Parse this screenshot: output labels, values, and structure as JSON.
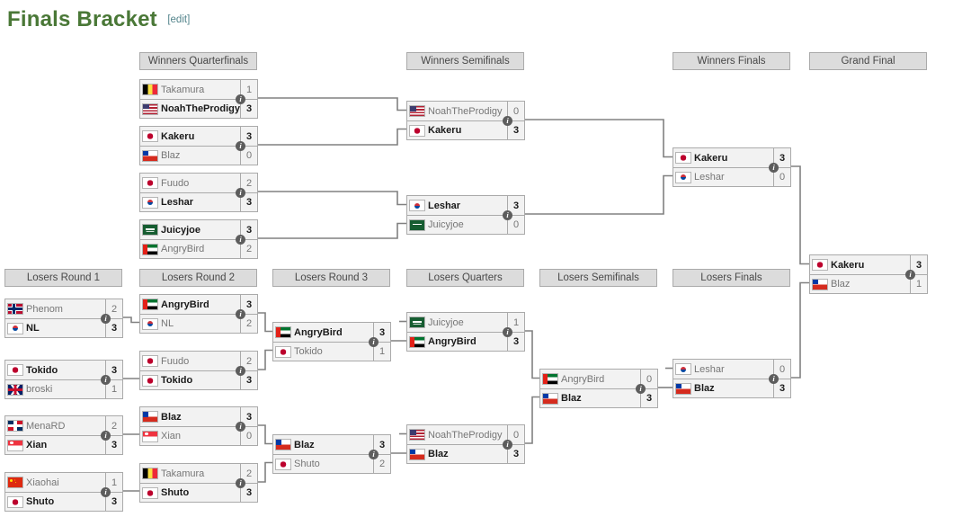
{
  "page": {
    "title": "Finals Bracket",
    "edit_label": "[edit]"
  },
  "icons": {
    "info": "i"
  },
  "colors": {
    "title_green": "#4a7837",
    "edit_link": "#54858c",
    "header_bg": "#dcdcdc",
    "box_border": "#aaaaaa",
    "row_bg": "#f2f2f2",
    "winner_text": "#1a1a1a",
    "loser_text": "#767676",
    "connector": "#808080"
  },
  "headers": [
    {
      "id": "winners-quarterfinals",
      "label": "Winners Quarterfinals"
    },
    {
      "id": "winners-semifinals",
      "label": "Winners Semifinals"
    },
    {
      "id": "winners-finals",
      "label": "Winners Finals"
    },
    {
      "id": "grand-final",
      "label": "Grand Final"
    },
    {
      "id": "losers-round-1",
      "label": "Losers Round 1"
    },
    {
      "id": "losers-round-2",
      "label": "Losers Round 2"
    },
    {
      "id": "losers-round-3",
      "label": "Losers Round 3"
    },
    {
      "id": "losers-quarters",
      "label": "Losers Quarters"
    },
    {
      "id": "losers-semifinals",
      "label": "Losers Semifinals"
    },
    {
      "id": "losers-finals",
      "label": "Losers Finals"
    }
  ],
  "matches": [
    {
      "id": "wqf1",
      "round": "Winners Quarterfinals",
      "players": [
        {
          "name": "Takamura",
          "flag": "be",
          "country": "Belgium",
          "score": "1",
          "winner": false
        },
        {
          "name": "NoahTheProdigy",
          "flag": "us",
          "country": "United States",
          "score": "3",
          "winner": true
        }
      ]
    },
    {
      "id": "wqf2",
      "round": "Winners Quarterfinals",
      "players": [
        {
          "name": "Kakeru",
          "flag": "jp",
          "country": "Japan",
          "score": "3",
          "winner": true
        },
        {
          "name": "Blaz",
          "flag": "cl",
          "country": "Chile",
          "score": "0",
          "winner": false
        }
      ]
    },
    {
      "id": "wqf3",
      "round": "Winners Quarterfinals",
      "players": [
        {
          "name": "Fuudo",
          "flag": "jp",
          "country": "Japan",
          "score": "2",
          "winner": false
        },
        {
          "name": "Leshar",
          "flag": "kr",
          "country": "South Korea",
          "score": "3",
          "winner": true
        }
      ]
    },
    {
      "id": "wqf4",
      "round": "Winners Quarterfinals",
      "players": [
        {
          "name": "Juicyjoe",
          "flag": "sa",
          "country": "Saudi Arabia",
          "score": "3",
          "winner": true
        },
        {
          "name": "AngryBird",
          "flag": "ae",
          "country": "United Arab Emirates",
          "score": "2",
          "winner": false
        }
      ]
    },
    {
      "id": "wsf1",
      "round": "Winners Semifinals",
      "players": [
        {
          "name": "NoahTheProdigy",
          "flag": "us",
          "country": "United States",
          "score": "0",
          "winner": false
        },
        {
          "name": "Kakeru",
          "flag": "jp",
          "country": "Japan",
          "score": "3",
          "winner": true
        }
      ]
    },
    {
      "id": "wsf2",
      "round": "Winners Semifinals",
      "players": [
        {
          "name": "Leshar",
          "flag": "kr",
          "country": "South Korea",
          "score": "3",
          "winner": true
        },
        {
          "name": "Juicyjoe",
          "flag": "sa",
          "country": "Saudi Arabia",
          "score": "0",
          "winner": false
        }
      ]
    },
    {
      "id": "wf",
      "round": "Winners Finals",
      "players": [
        {
          "name": "Kakeru",
          "flag": "jp",
          "country": "Japan",
          "score": "3",
          "winner": true
        },
        {
          "name": "Leshar",
          "flag": "kr",
          "country": "South Korea",
          "score": "0",
          "winner": false
        }
      ]
    },
    {
      "id": "gf",
      "round": "Grand Final",
      "players": [
        {
          "name": "Kakeru",
          "flag": "jp",
          "country": "Japan",
          "score": "3",
          "winner": true
        },
        {
          "name": "Blaz",
          "flag": "cl",
          "country": "Chile",
          "score": "1",
          "winner": false
        }
      ]
    },
    {
      "id": "lr1m1",
      "round": "Losers Round 1",
      "players": [
        {
          "name": "Phenom",
          "flag": "no",
          "country": "Norway",
          "score": "2",
          "winner": false
        },
        {
          "name": "NL",
          "flag": "kr",
          "country": "South Korea",
          "score": "3",
          "winner": true
        }
      ]
    },
    {
      "id": "lr1m2",
      "round": "Losers Round 1",
      "players": [
        {
          "name": "Tokido",
          "flag": "jp",
          "country": "Japan",
          "score": "3",
          "winner": true
        },
        {
          "name": "broski",
          "flag": "gb",
          "country": "United Kingdom",
          "score": "1",
          "winner": false
        }
      ]
    },
    {
      "id": "lr1m3",
      "round": "Losers Round 1",
      "players": [
        {
          "name": "MenaRD",
          "flag": "do",
          "country": "Dominican Republic",
          "score": "2",
          "winner": false
        },
        {
          "name": "Xian",
          "flag": "sg",
          "country": "Singapore",
          "score": "3",
          "winner": true
        }
      ]
    },
    {
      "id": "lr1m4",
      "round": "Losers Round 1",
      "players": [
        {
          "name": "Xiaohai",
          "flag": "cn",
          "country": "China",
          "score": "1",
          "winner": false
        },
        {
          "name": "Shuto",
          "flag": "jp",
          "country": "Japan",
          "score": "3",
          "winner": true
        }
      ]
    },
    {
      "id": "lr2m1",
      "round": "Losers Round 2",
      "players": [
        {
          "name": "AngryBird",
          "flag": "ae",
          "country": "United Arab Emirates",
          "score": "3",
          "winner": true
        },
        {
          "name": "NL",
          "flag": "kr",
          "country": "South Korea",
          "score": "2",
          "winner": false
        }
      ]
    },
    {
      "id": "lr2m2",
      "round": "Losers Round 2",
      "players": [
        {
          "name": "Fuudo",
          "flag": "jp",
          "country": "Japan",
          "score": "2",
          "winner": false
        },
        {
          "name": "Tokido",
          "flag": "jp",
          "country": "Japan",
          "score": "3",
          "winner": true
        }
      ]
    },
    {
      "id": "lr2m3",
      "round": "Losers Round 2",
      "players": [
        {
          "name": "Blaz",
          "flag": "cl",
          "country": "Chile",
          "score": "3",
          "winner": true
        },
        {
          "name": "Xian",
          "flag": "sg",
          "country": "Singapore",
          "score": "0",
          "winner": false
        }
      ]
    },
    {
      "id": "lr2m4",
      "round": "Losers Round 2",
      "players": [
        {
          "name": "Takamura",
          "flag": "be",
          "country": "Belgium",
          "score": "2",
          "winner": false
        },
        {
          "name": "Shuto",
          "flag": "jp",
          "country": "Japan",
          "score": "3",
          "winner": true
        }
      ]
    },
    {
      "id": "lr3m1",
      "round": "Losers Round 3",
      "players": [
        {
          "name": "AngryBird",
          "flag": "ae",
          "country": "United Arab Emirates",
          "score": "3",
          "winner": true
        },
        {
          "name": "Tokido",
          "flag": "jp",
          "country": "Japan",
          "score": "1",
          "winner": false
        }
      ]
    },
    {
      "id": "lr3m2",
      "round": "Losers Round 3",
      "players": [
        {
          "name": "Blaz",
          "flag": "cl",
          "country": "Chile",
          "score": "3",
          "winner": true
        },
        {
          "name": "Shuto",
          "flag": "jp",
          "country": "Japan",
          "score": "2",
          "winner": false
        }
      ]
    },
    {
      "id": "lqm1",
      "round": "Losers Quarters",
      "players": [
        {
          "name": "Juicyjoe",
          "flag": "sa",
          "country": "Saudi Arabia",
          "score": "1",
          "winner": false
        },
        {
          "name": "AngryBird",
          "flag": "ae",
          "country": "United Arab Emirates",
          "score": "3",
          "winner": true
        }
      ]
    },
    {
      "id": "lqm2",
      "round": "Losers Quarters",
      "players": [
        {
          "name": "NoahTheProdigy",
          "flag": "us",
          "country": "United States",
          "score": "0",
          "winner": false
        },
        {
          "name": "Blaz",
          "flag": "cl",
          "country": "Chile",
          "score": "3",
          "winner": true
        }
      ]
    },
    {
      "id": "lsf",
      "round": "Losers Semifinals",
      "players": [
        {
          "name": "AngryBird",
          "flag": "ae",
          "country": "United Arab Emirates",
          "score": "0",
          "winner": false
        },
        {
          "name": "Blaz",
          "flag": "cl",
          "country": "Chile",
          "score": "3",
          "winner": true
        }
      ]
    },
    {
      "id": "lf",
      "round": "Losers Finals",
      "players": [
        {
          "name": "Leshar",
          "flag": "kr",
          "country": "South Korea",
          "score": "0",
          "winner": false
        },
        {
          "name": "Blaz",
          "flag": "cl",
          "country": "Chile",
          "score": "3",
          "winner": true
        }
      ]
    }
  ]
}
